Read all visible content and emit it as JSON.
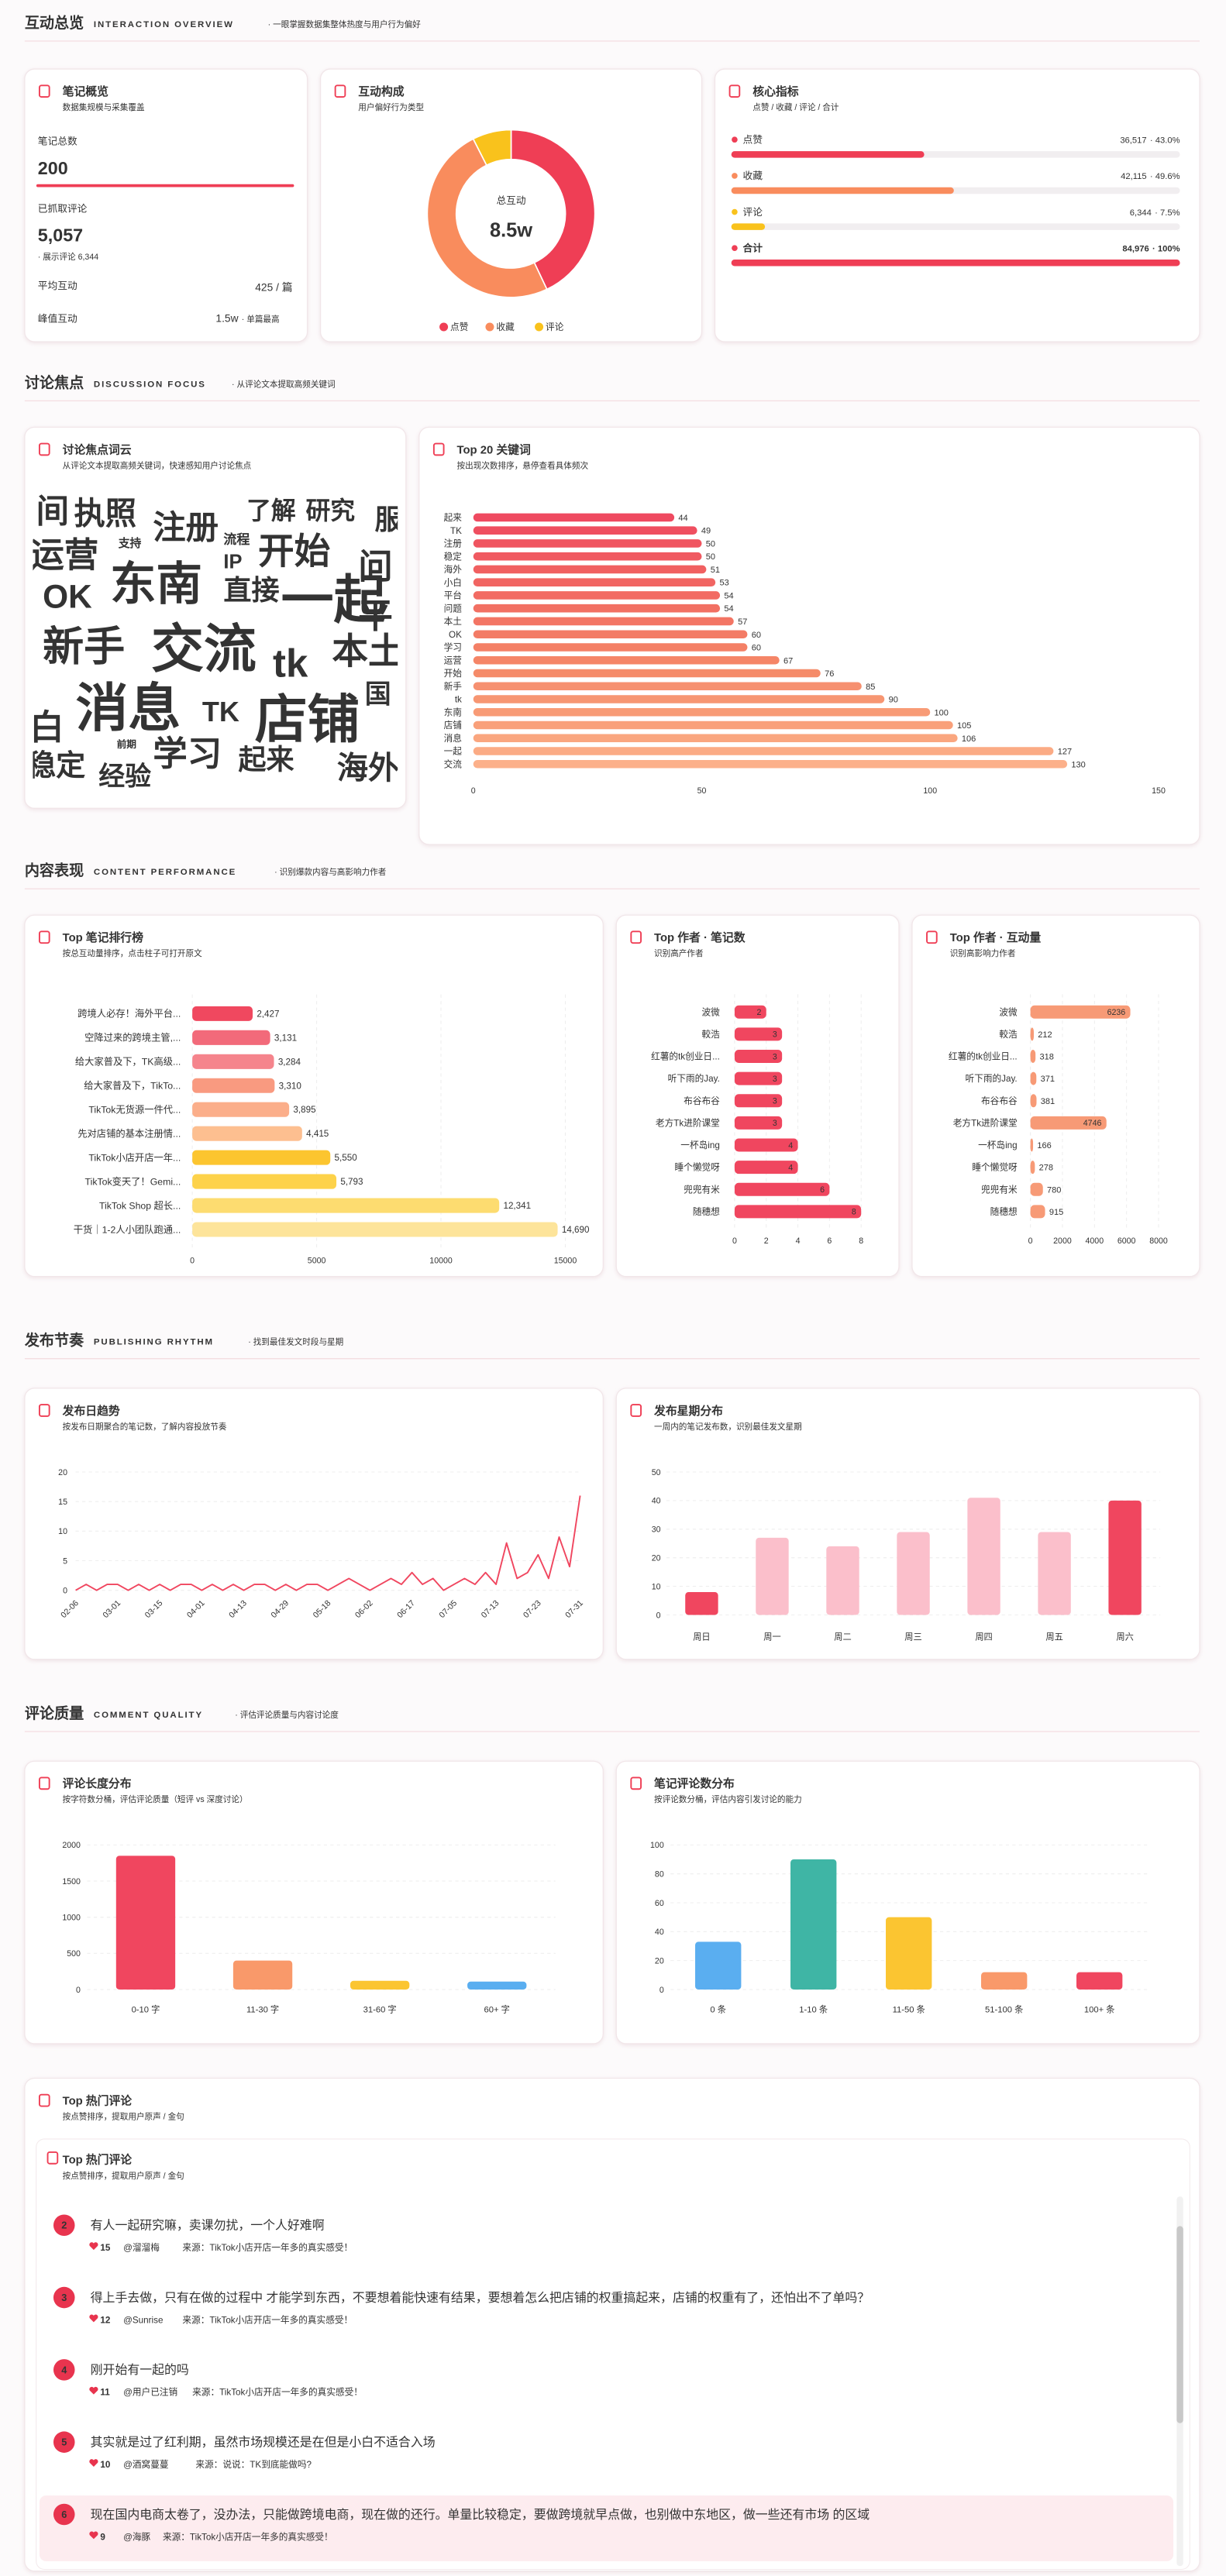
{
  "sections": [
    {
      "title": "互动总览",
      "title_en": "INTERACTION OVERVIEW",
      "desc": "· 一眼掌握数据集整体热度与用户行为偏好"
    },
    {
      "title": "讨论焦点",
      "title_en": "DISCUSSION FOCUS",
      "desc": "· 从评论文本提取高频关键词"
    },
    {
      "title": "内容表现",
      "title_en": "CONTENT PERFORMANCE",
      "desc": "· 识别爆款内容与高影响力作者"
    },
    {
      "title": "发布节奏",
      "title_en": "PUBLISHING RHYTHM",
      "desc": "· 找到最佳发文时段与星期"
    },
    {
      "title": "评论质量",
      "title_en": "COMMENT QUALITY",
      "desc": "· 评估评论质量与内容讨论度"
    }
  ],
  "overview": {
    "title": "笔记概览",
    "subtitle": "数据集规模与采集覆盖",
    "total_label": "笔记总数",
    "total": "200",
    "comments_label": "已抓取评论",
    "comments": "5,057",
    "comments_note": "· 展示评论 6,344",
    "avg_label": "平均互动",
    "avg": "425 / 篇",
    "peak_label": "峰值互动",
    "peak": "1.5w",
    "peak_note": "· 单篇最高"
  },
  "word_cloud": {
    "title": "讨论焦点词云",
    "subtitle": "从评论文本提取高频关键词，快速感知用户讨论焦点",
    "words": [
      "间",
      "执照",
      "注册",
      "了解",
      "研究",
      "服",
      "运营",
      "支持",
      "流程",
      "IP",
      "开始",
      "问",
      "OK",
      "东南",
      "直接",
      "一起",
      "平",
      "新手",
      "交流",
      "tk",
      "本土",
      "国",
      "白",
      "消息",
      "TK",
      "店铺",
      "前期",
      "学习",
      "起来",
      "海外",
      "稳定",
      "经验"
    ]
  },
  "chart_data": [
    {
      "type": "donut",
      "title": "互动构成",
      "subtitle": "用户偏好行为类型",
      "categories": [
        "点赞",
        "收藏",
        "评论"
      ],
      "values": [
        36517,
        42115,
        6344
      ],
      "colors": [
        "#ef3e55",
        "#f98c5d",
        "#f9c21c"
      ],
      "center_label": "总互动",
      "center_value": "8.5w"
    },
    {
      "type": "progress",
      "title": "核心指标",
      "subtitle": "点赞 / 收藏 / 评论 / 合计",
      "categories": [
        "点赞",
        "收藏",
        "评论",
        "合计"
      ],
      "values": [
        43.0,
        49.6,
        7.5,
        100
      ],
      "value_labels": [
        "· 43.0%",
        "· 49.6%",
        "· 7.5%",
        "· 100%"
      ],
      "count_labels": [
        "36,517",
        "42,115",
        "6,344",
        "84,976"
      ],
      "colors": [
        "#ef3e55",
        "#f98c5d",
        "#f9c21c",
        "#ef3e55"
      ],
      "xlim": [
        0,
        100
      ]
    },
    {
      "type": "hbar",
      "title": "Top 20 关键词",
      "subtitle": "按出现次数排序，悬停查看具体频次",
      "categories": [
        "起来",
        "TK",
        "注册",
        "稳定",
        "海外",
        "小白",
        "平台",
        "问题",
        "本土",
        "OK",
        "学习",
        "运营",
        "开始",
        "新手",
        "tk",
        "东南",
        "店铺",
        "消息",
        "一起",
        "交流"
      ],
      "values": [
        44,
        49,
        50,
        50,
        51,
        53,
        54,
        54,
        57,
        60,
        60,
        67,
        76,
        85,
        90,
        100,
        105,
        106,
        127,
        130
      ],
      "colors": [
        "#ef4a60",
        "#ef4f60",
        "#f05560",
        "#f05a61",
        "#f16061",
        "#f16562",
        "#f26b63",
        "#f27063",
        "#f37564",
        "#f37b65",
        "#f48066",
        "#f58567",
        "#f58b69",
        "#f69070",
        "#f79672",
        "#f89b76",
        "#f9a07a",
        "#faa67f",
        "#fbab85",
        "#fcb08a"
      ],
      "xlim": [
        0,
        150
      ],
      "xticks": [
        0,
        50,
        100,
        150
      ],
      "grid": false
    },
    {
      "type": "hbar",
      "title": "Top 笔记排行榜",
      "subtitle": "按总互动量排序，点击柱子可打开原文",
      "categories": [
        "跨境人必存！海外平台...",
        "空降过来的跨境主管,...",
        "给大家普及下，TK高级...",
        "给大家普及下，TikTo...",
        "TikTok无货源一件代...",
        "先对店铺的基本注册情...",
        "TikTok小店开店一年...",
        "TikTok变天了！Gemi...",
        "TikTok Shop 超长...",
        "干货｜1-2人小团队跑通..."
      ],
      "values": [
        2427,
        3131,
        3284,
        3310,
        3895,
        4415,
        5550,
        5793,
        12341,
        14690
      ],
      "value_labels": [
        "2,427",
        "3,131",
        "3,284",
        "3,310",
        "3,895",
        "4,415",
        "5,550",
        "5,793",
        "12,341",
        "14,690"
      ],
      "colors": [
        "#f0485f",
        "#f26a7a",
        "#f5848c",
        "#f99a80",
        "#fbae8a",
        "#fdbf90",
        "#fcc52f",
        "#fdd24a",
        "#fddc70",
        "#fde49a"
      ],
      "xlim": [
        0,
        15000
      ],
      "xticks": [
        0,
        5000,
        10000,
        15000
      ],
      "grid": true
    },
    {
      "type": "hbar",
      "title": "Top 作者 · 笔记数",
      "subtitle": "识别高产作者",
      "categories": [
        "波微",
        "較浩",
        "红薯的tk创业日...",
        "听下雨的Jay.",
        "布谷布谷",
        "老方Tk进阶课堂",
        "一杯岛ing",
        "睡个懒觉呀",
        "兜兜有米",
        "随穗想"
      ],
      "values": [
        2,
        3,
        3,
        3,
        3,
        3,
        4,
        4,
        6,
        8
      ],
      "color": "#f0465f",
      "xlim": [
        0,
        8
      ],
      "xticks": [
        0,
        2,
        4,
        6,
        8
      ],
      "grid": true
    },
    {
      "type": "hbar",
      "title": "Top 作者 · 互动量",
      "subtitle": "识别高影响力作者",
      "categories": [
        "波微",
        "較浩",
        "红薯的tk创业日...",
        "听下雨的Jay.",
        "布谷布谷",
        "老方Tk进阶课堂",
        "一杯岛ing",
        "睡个懒觉呀",
        "兜兜有米",
        "随穗想"
      ],
      "values": [
        6236,
        212,
        318,
        371,
        381,
        4746,
        166,
        278,
        780,
        915
      ],
      "color": "#f79a76",
      "xlim": [
        0,
        8000
      ],
      "xticks": [
        0,
        2000,
        4000,
        6000,
        8000
      ],
      "grid": true
    },
    {
      "type": "line",
      "title": "发布日趋势",
      "subtitle": "按发布日期聚合的笔记数，了解内容投放节奏",
      "categories": [
        "02-06",
        null,
        null,
        null,
        "03-01",
        null,
        null,
        null,
        "03-15",
        null,
        null,
        null,
        "04-01",
        null,
        null,
        null,
        "04-13",
        null,
        null,
        null,
        "04-29",
        null,
        null,
        null,
        "05-18",
        null,
        null,
        null,
        "06-02",
        null,
        null,
        null,
        "06-17",
        null,
        null,
        null,
        "07-05",
        null,
        null,
        null,
        "07-13",
        null,
        null,
        null,
        "07-23",
        null,
        null,
        null,
        "07-31"
      ],
      "values": [
        0,
        1,
        0,
        1,
        1,
        0,
        1,
        0,
        1,
        0,
        1,
        1,
        0,
        1,
        0,
        1,
        0,
        1,
        1,
        0,
        1,
        0,
        1,
        1,
        0,
        1,
        2,
        1,
        0,
        1,
        2,
        1,
        3,
        1,
        2,
        0,
        1,
        2,
        1,
        3,
        1,
        8,
        2,
        3,
        6,
        2,
        9,
        4,
        16
      ],
      "color": "#f0465f",
      "ylim": [
        0,
        20
      ],
      "yticks": [
        0,
        5,
        10,
        15,
        20
      ],
      "grid": true
    },
    {
      "type": "bar",
      "title": "发布星期分布",
      "subtitle": "一周内的笔记发布数，识别最佳发文星期",
      "categories": [
        "周日",
        "周一",
        "周二",
        "周三",
        "周四",
        "周五",
        "周六"
      ],
      "values": [
        8,
        27,
        24,
        29,
        41,
        29,
        40
      ],
      "colors": [
        "#f0465f",
        "#fbbfcb",
        "#fbbfcb",
        "#fbbfcb",
        "#fbbfcb",
        "#fbbfcb",
        "#f0465f"
      ],
      "ylim": [
        0,
        50
      ],
      "yticks": [
        0,
        10,
        20,
        30,
        40,
        50
      ],
      "grid": true
    },
    {
      "type": "bar",
      "title": "评论长度分布",
      "subtitle": "按字符数分桶，评估评论质量（短评 vs 深度讨论）",
      "categories": [
        "0-10 字",
        "11-30 字",
        "31-60 字",
        "60+ 字"
      ],
      "values": [
        1850,
        400,
        120,
        110
      ],
      "colors": [
        "#f0465f",
        "#f9996a",
        "#fbc531",
        "#5aaef0"
      ],
      "ylim": [
        0,
        2000
      ],
      "yticks": [
        0,
        500,
        1000,
        1500,
        2000
      ],
      "grid": true
    },
    {
      "type": "bar",
      "title": "笔记评论数分布",
      "subtitle": "按评论数分桶，评估内容引发讨论的能力",
      "categories": [
        "0 条",
        "1-10 条",
        "11-50 条",
        "51-100 条",
        "100+ 条"
      ],
      "values": [
        33,
        90,
        50,
        12,
        12
      ],
      "colors": [
        "#5aaef0",
        "#3fb5a5",
        "#fbc531",
        "#f9996a",
        "#f0465f"
      ],
      "ylim": [
        0,
        100
      ],
      "yticks": [
        0,
        20,
        40,
        60,
        80,
        100
      ],
      "grid": true
    }
  ],
  "top_comments": {
    "title": "Top 热门评论",
    "subtitle": "按点赞排序，提取用户原声 / 金句",
    "inner_title": "Top 热门评论",
    "inner_subtitle": "按点赞排序，提取用户原声 / 金句",
    "items": [
      {
        "rank": 2,
        "text": "有人一起研究嘛，卖课勿扰，一个人好难啊",
        "likes": 15,
        "user": "@溜溜梅",
        "source": "来源：TikTok小店开店一年多的真实感受！"
      },
      {
        "rank": 3,
        "text": "得上手去做，只有在做的过程中 才能学到东西，不要想着能快速有结果，要想着怎么把店铺的权重搞起来，店铺的权重有了，还怕出不了单吗？",
        "likes": 12,
        "user": "@Sunrise",
        "source": "来源：TikTok小店开店一年多的真实感受！"
      },
      {
        "rank": 4,
        "text": "刚开始有一起的吗",
        "likes": 11,
        "user": "@用户已注销",
        "source": "来源：TikTok小店开店一年多的真实感受！"
      },
      {
        "rank": 5,
        "text": "其实就是过了红利期，虽然市场规模还是在但是小白不适合入场",
        "likes": 10,
        "user": "@酒窝蔓蔓",
        "source": "来源：说说：TK到底能做吗?"
      },
      {
        "rank": 6,
        "text": "现在国内电商太卷了，没办法，只能做跨境电商，现在做的还行。单量比较稳定，要做跨境就早点做，也别做中东地区，做一些还有市场 的区域",
        "likes": 9,
        "user": "@海豚",
        "source": "来源：TikTok小店开店一年多的真实感受！"
      }
    ]
  }
}
